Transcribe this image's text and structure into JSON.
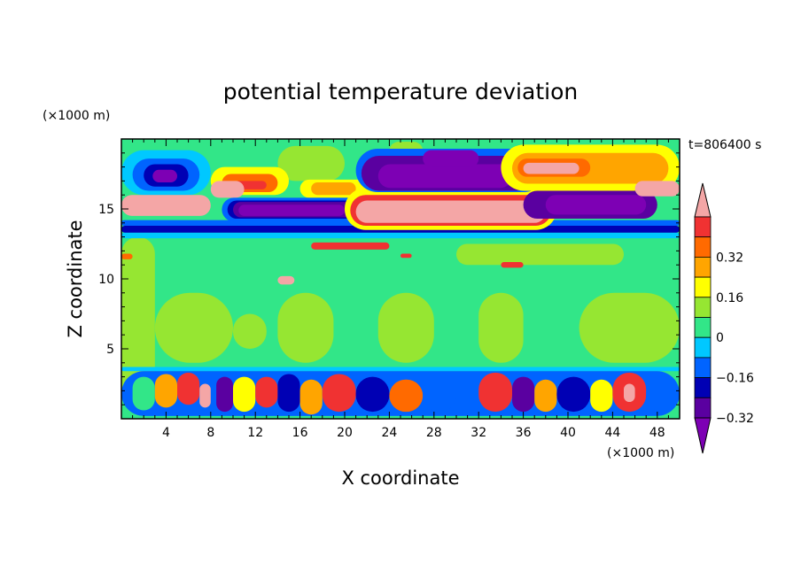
{
  "chart_data": {
    "type": "heatmap",
    "title": "potential temperature deviation",
    "xlabel": "X coordinate",
    "ylabel": "Z coordinate",
    "x_unit": "(×1000 m)",
    "y_unit": "(×1000 m)",
    "time_label": "t=806400 s",
    "xlim": [
      0,
      50
    ],
    "ylim": [
      0,
      20
    ],
    "x_ticks": [
      "4",
      "8",
      "12",
      "16",
      "20",
      "24",
      "28",
      "32",
      "36",
      "40",
      "44",
      "48"
    ],
    "y_ticks": [
      "5",
      "10",
      "15"
    ],
    "colorbar": {
      "levels_desc": [
        ">0.4",
        "0.32–0.4",
        "0.24–0.32",
        "0.16–0.24",
        "0.08–0.16",
        "0–0.08",
        "-0.08–0",
        "-0.16–-0.08",
        "-0.24–-0.16",
        "-0.32–-0.24",
        "-0.4–-0.32",
        "<-0.4"
      ],
      "colors_desc": [
        "#f4a6a6",
        "#f03232",
        "#ff6a00",
        "#ffa500",
        "#ffff00",
        "#96e632",
        "#32e688",
        "#00c8ff",
        "#0064ff",
        "#0000b4",
        "#5a00a0",
        "#7d00b4"
      ],
      "labels": [
        "0.32",
        "0.16",
        "0",
        "−0.16",
        "−0.32"
      ]
    },
    "background_level": "-0.08–0",
    "regions": [
      {
        "level": "0–0.08",
        "x": [
          0,
          3
        ],
        "z": [
          0.5,
          13
        ]
      },
      {
        "level": "0–0.08",
        "x": [
          3,
          10
        ],
        "z": [
          4,
          9
        ]
      },
      {
        "level": "0–0.08",
        "x": [
          10,
          13
        ],
        "z": [
          5,
          7.5
        ]
      },
      {
        "level": "0–0.08",
        "x": [
          14,
          19
        ],
        "z": [
          4,
          9
        ]
      },
      {
        "level": "0–0.08",
        "x": [
          23,
          28
        ],
        "z": [
          4,
          9
        ]
      },
      {
        "level": "0–0.08",
        "x": [
          32,
          36
        ],
        "z": [
          4,
          9
        ]
      },
      {
        "level": "0–0.08",
        "x": [
          41,
          50
        ],
        "z": [
          4,
          9
        ]
      },
      {
        "level": "0–0.08",
        "x": [
          30,
          45
        ],
        "z": [
          11,
          12.5
        ]
      },
      {
        "level": "0–0.08",
        "x": [
          14,
          20
        ],
        "z": [
          17,
          19.5
        ]
      },
      {
        "level": "0–0.08",
        "x": [
          24,
          27
        ],
        "z": [
          18.5,
          19.8
        ]
      },
      {
        "level": "-0.32–-0.24",
        "x": [
          0,
          50
        ],
        "z": [
          13.3,
          13.8
        ]
      },
      {
        "level": "-0.24–-0.16",
        "x": [
          0,
          50
        ],
        "z": [
          13.8,
          14.2
        ]
      },
      {
        "level": "-0.16–-0.08",
        "x": [
          0,
          50
        ],
        "z": [
          12.9,
          13.3
        ]
      },
      {
        "level": "-0.16–-0.08",
        "x": [
          0,
          50
        ],
        "z": [
          3.4,
          3.7
        ]
      },
      {
        "level": "-0.16–-0.08",
        "x": [
          0,
          8
        ],
        "z": [
          16,
          19.2
        ]
      },
      {
        "level": "-0.24–-0.16",
        "x": [
          1,
          7
        ],
        "z": [
          16.3,
          18.6
        ]
      },
      {
        "level": "-0.32–-0.24",
        "x": [
          2,
          6
        ],
        "z": [
          16.6,
          18.2
        ]
      },
      {
        "level": "<-0.4",
        "x": [
          2.8,
          5
        ],
        "z": [
          16.9,
          17.8
        ]
      },
      {
        "level": "0.08–0.16",
        "x": [
          8,
          15
        ],
        "z": [
          16,
          18
        ]
      },
      {
        "level": "0.24–0.32",
        "x": [
          9,
          14
        ],
        "z": [
          16.2,
          17.5
        ]
      },
      {
        "level": "0.32–0.4",
        "x": [
          10,
          13
        ],
        "z": [
          16.4,
          17
        ]
      },
      {
        "level": ">0.4",
        "x": [
          8,
          11
        ],
        "z": [
          15.8,
          17
        ]
      },
      {
        "level": ">0.4",
        "x": [
          0,
          8
        ],
        "z": [
          14.5,
          16
        ]
      },
      {
        "level": "0.08–0.16",
        "x": [
          16,
          22
        ],
        "z": [
          15.8,
          17.1
        ]
      },
      {
        "level": "0.16–0.24",
        "x": [
          17,
          21
        ],
        "z": [
          16,
          16.9
        ]
      },
      {
        "level": "-0.24–-0.16",
        "x": [
          9,
          22
        ],
        "z": [
          14.1,
          15.8
        ]
      },
      {
        "level": "-0.32–-0.24",
        "x": [
          9.5,
          21.5
        ],
        "z": [
          14.3,
          15.6
        ]
      },
      {
        "level": "-0.4–-0.32",
        "x": [
          10,
          21
        ],
        "z": [
          14.4,
          15.5
        ]
      },
      {
        "level": "<-0.4",
        "x": [
          10.5,
          20
        ],
        "z": [
          14.5,
          15.3
        ]
      },
      {
        "level": "0.08–0.16",
        "x": [
          20,
          39
        ],
        "z": [
          13.5,
          16.5
        ]
      },
      {
        "level": "0.32–0.4",
        "x": [
          20.5,
          38.5
        ],
        "z": [
          13.8,
          16
        ]
      },
      {
        "level": ">0.4",
        "x": [
          21,
          38
        ],
        "z": [
          14,
          15.6
        ]
      },
      {
        "level": "-0.4–-0.32",
        "x": [
          36,
          48
        ],
        "z": [
          14.3,
          16.3
        ]
      },
      {
        "level": "<-0.4",
        "x": [
          38,
          47
        ],
        "z": [
          14.6,
          16
        ]
      },
      {
        "level": "-0.24–-0.16",
        "x": [
          21,
          38
        ],
        "z": [
          16.2,
          19.3
        ]
      },
      {
        "level": "-0.4–-0.32",
        "x": [
          21.5,
          37
        ],
        "z": [
          16.3,
          18.8
        ]
      },
      {
        "level": "<-0.4",
        "x": [
          23,
          35
        ],
        "z": [
          16.5,
          18.2
        ]
      },
      {
        "level": "<-0.4",
        "x": [
          27,
          32
        ],
        "z": [
          18,
          19.2
        ]
      },
      {
        "level": "0.08–0.16",
        "x": [
          34,
          50
        ],
        "z": [
          16.3,
          19.6
        ]
      },
      {
        "level": "0.16–0.24",
        "x": [
          35,
          49
        ],
        "z": [
          16.8,
          19
        ]
      },
      {
        "level": "0.24–0.32",
        "x": [
          35.5,
          42
        ],
        "z": [
          17.3,
          18.6
        ]
      },
      {
        "level": ">0.4",
        "x": [
          36,
          41
        ],
        "z": [
          17.5,
          18.3
        ]
      },
      {
        "level": ">0.4",
        "x": [
          46,
          50
        ],
        "z": [
          15.9,
          17
        ]
      },
      {
        "level": "0.32–0.4",
        "x": [
          17,
          24
        ],
        "z": [
          12.1,
          12.6
        ]
      },
      {
        "level": "0.32–0.4",
        "x": [
          25,
          26
        ],
        "z": [
          11.5,
          11.8
        ]
      },
      {
        "level": "0.32–0.4",
        "x": [
          34,
          36
        ],
        "z": [
          10.8,
          11.2
        ]
      },
      {
        "level": ">0.4",
        "x": [
          14,
          15.5
        ],
        "z": [
          9.6,
          10.2
        ]
      },
      {
        "level": "0.24–0.32",
        "x": [
          0,
          1
        ],
        "z": [
          11.4,
          11.8
        ]
      },
      {
        "level": "-0.24–-0.16",
        "x": [
          0,
          50
        ],
        "z": [
          0.2,
          3.4
        ]
      },
      {
        "level": "-0.08–0",
        "x": [
          1,
          3
        ],
        "z": [
          0.6,
          3
        ]
      },
      {
        "level": "0.16–0.24",
        "x": [
          3,
          5
        ],
        "z": [
          0.8,
          3.2
        ]
      },
      {
        "level": "0.32–0.4",
        "x": [
          5,
          7
        ],
        "z": [
          1,
          3.3
        ]
      },
      {
        "level": ">0.4",
        "x": [
          7,
          8
        ],
        "z": [
          0.8,
          2.5
        ]
      },
      {
        "level": "-0.4–-0.32",
        "x": [
          8.5,
          10
        ],
        "z": [
          0.5,
          3
        ]
      },
      {
        "level": "0.08–0.16",
        "x": [
          10,
          12
        ],
        "z": [
          0.5,
          3
        ]
      },
      {
        "level": "0.32–0.4",
        "x": [
          12,
          14
        ],
        "z": [
          0.8,
          3
        ]
      },
      {
        "level": "-0.32–-0.24",
        "x": [
          14,
          16
        ],
        "z": [
          0.5,
          3.2
        ]
      },
      {
        "level": "0.16–0.24",
        "x": [
          16,
          18
        ],
        "z": [
          0.3,
          2.8
        ]
      },
      {
        "level": "0.32–0.4",
        "x": [
          18,
          21
        ],
        "z": [
          0.5,
          3.2
        ]
      },
      {
        "level": "-0.32–-0.24",
        "x": [
          21,
          24
        ],
        "z": [
          0.5,
          3
        ]
      },
      {
        "level": "0.24–0.32",
        "x": [
          24,
          27
        ],
        "z": [
          0.5,
          2.8
        ]
      },
      {
        "level": "-0.24–-0.16",
        "x": [
          27,
          30
        ],
        "z": [
          0.5,
          3
        ]
      },
      {
        "level": "0.32–0.4",
        "x": [
          32,
          35
        ],
        "z": [
          0.5,
          3.3
        ]
      },
      {
        "level": "-0.4–-0.32",
        "x": [
          35,
          37
        ],
        "z": [
          0.5,
          3
        ]
      },
      {
        "level": "0.16–0.24",
        "x": [
          37,
          39
        ],
        "z": [
          0.5,
          2.8
        ]
      },
      {
        "level": "-0.32–-0.24",
        "x": [
          39,
          42
        ],
        "z": [
          0.5,
          3
        ]
      },
      {
        "level": "0.08–0.16",
        "x": [
          42,
          44
        ],
        "z": [
          0.5,
          2.8
        ]
      },
      {
        "level": "0.32–0.4",
        "x": [
          44,
          47
        ],
        "z": [
          0.5,
          3.3
        ]
      },
      {
        "level": ">0.4",
        "x": [
          45,
          46
        ],
        "z": [
          1.2,
          2.5
        ]
      },
      {
        "level": "-0.24–-0.16",
        "x": [
          47,
          50
        ],
        "z": [
          0.5,
          3
        ]
      }
    ]
  }
}
